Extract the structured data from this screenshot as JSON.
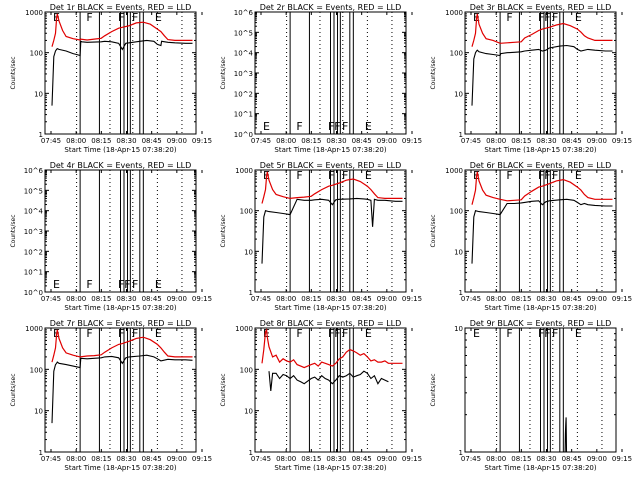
{
  "figure": {
    "xlabel": "Start Time (18-Apr-15 07:38:20)",
    "ylabel": "Counts/sec",
    "x_tick_labels": [
      "07:45",
      "08:00",
      "08:15",
      "08:30",
      "08:45",
      "09:00",
      "09:15"
    ],
    "colors": {
      "events": "#000000",
      "lld": "#e00000",
      "background": "#ffffff"
    }
  },
  "chart_data": [
    {
      "type": "line",
      "title": "Det 1r BLACK = Events, RED = LLD",
      "x_range": [
        -2,
        41
      ],
      "ylim": [
        1,
        1000
      ],
      "y_scale": "log",
      "y_tick_labels": [
        "1",
        "10",
        "100",
        "1000"
      ],
      "marker_letters": [
        "E",
        "F",
        "F",
        "F",
        "E"
      ],
      "series": [
        {
          "name": "Events",
          "x": [
            0,
            0.5,
            1,
            1.3,
            1.5,
            2,
            4,
            6,
            7,
            8,
            8.2,
            8.5,
            10,
            12,
            14,
            15,
            17,
            19,
            20,
            21,
            22,
            25,
            27,
            29,
            30,
            31,
            31.2,
            33,
            35,
            38,
            40
          ],
          "y": [
            5,
            80,
            110,
            120,
            125,
            120,
            110,
            95,
            90,
            85,
            190,
            185,
            180,
            182,
            185,
            190,
            185,
            170,
            120,
            170,
            175,
            190,
            200,
            190,
            160,
            150,
            190,
            180,
            175,
            170,
            170
          ]
        },
        {
          "name": "LLD",
          "x": [
            0,
            0.5,
            1,
            1.3,
            1.5,
            2,
            3,
            4,
            6,
            8,
            8.2,
            10,
            12,
            14,
            15,
            17,
            19,
            20,
            22,
            24,
            26,
            28,
            30,
            31,
            32,
            33,
            35,
            38,
            40
          ],
          "y": [
            140,
            200,
            300,
            700,
            900,
            600,
            350,
            250,
            220,
            205,
            215,
            205,
            215,
            225,
            260,
            330,
            400,
            420,
            460,
            540,
            560,
            500,
            380,
            330,
            260,
            210,
            200,
            200,
            200
          ]
        }
      ]
    },
    {
      "type": "line",
      "title": "Det 2r BLACK = Events, RED = LLD",
      "x_range": [
        -2,
        41
      ],
      "ylim": [
        1,
        1000000
      ],
      "y_scale": "log",
      "y_tick_labels": [
        "10^0",
        "10^1",
        "10^2",
        "10^3",
        "10^4",
        "10^5",
        "10^6"
      ],
      "marker_letters": [
        "E",
        "F",
        "FF",
        "F",
        "E"
      ],
      "series": []
    },
    {
      "type": "line",
      "title": "Det 3r BLACK = Events, RED = LLD",
      "x_range": [
        -2,
        41
      ],
      "ylim": [
        1,
        1000
      ],
      "y_scale": "log",
      "y_tick_labels": [
        "1",
        "10",
        "100",
        "1000"
      ],
      "marker_letters": [
        "E",
        "F",
        "FF",
        "F",
        "E"
      ],
      "series": [
        {
          "name": "Events",
          "x": [
            0,
            0.5,
            1,
            1.3,
            1.5,
            2,
            4,
            6,
            8,
            8.2,
            10,
            12,
            14,
            15,
            17,
            19,
            20,
            21,
            22,
            25,
            27,
            29,
            30,
            31,
            33,
            35,
            38,
            40
          ],
          "y": [
            5,
            70,
            100,
            110,
            115,
            105,
            95,
            90,
            85,
            95,
            100,
            102,
            105,
            110,
            115,
            120,
            110,
            115,
            130,
            145,
            150,
            140,
            120,
            110,
            120,
            115,
            110,
            110
          ]
        },
        {
          "name": "LLD",
          "x": [
            0,
            0.5,
            1,
            1.3,
            1.5,
            2,
            3,
            4,
            6,
            8,
            10,
            12,
            14,
            15,
            17,
            19,
            20,
            22,
            24,
            26,
            28,
            30,
            31,
            32,
            33,
            35,
            38,
            40
          ],
          "y": [
            140,
            200,
            300,
            700,
            900,
            500,
            300,
            220,
            200,
            170,
            175,
            180,
            185,
            230,
            280,
            350,
            380,
            420,
            480,
            520,
            460,
            380,
            320,
            260,
            230,
            200,
            200,
            200
          ]
        }
      ]
    },
    {
      "type": "line",
      "title": "Det 4r BLACK = Events, RED = LLD",
      "x_range": [
        -2,
        41
      ],
      "ylim": [
        1,
        1000000
      ],
      "y_scale": "log",
      "y_tick_labels": [
        "10^0",
        "10^1",
        "10^2",
        "10^3",
        "10^4",
        "10^5",
        "10^6"
      ],
      "marker_letters": [
        "E",
        "F",
        "FF",
        "F",
        "E"
      ],
      "series": []
    },
    {
      "type": "line",
      "title": "Det 5r BLACK = Events, RED = LLD",
      "x_range": [
        -2,
        41
      ],
      "ylim": [
        1,
        1000
      ],
      "y_scale": "log",
      "y_tick_labels": [
        "1",
        "10",
        "100",
        "1000"
      ],
      "marker_letters": [
        "E",
        "F",
        "F",
        "F",
        "E"
      ],
      "series": [
        {
          "name": "Events",
          "x": [
            0,
            0.5,
            1,
            2,
            4,
            6,
            8,
            10,
            12,
            14,
            15,
            17,
            19,
            20,
            21,
            22,
            25,
            27,
            29,
            30,
            31,
            31.5,
            32,
            33,
            35,
            38,
            40
          ],
          "y": [
            5,
            70,
            100,
            95,
            90,
            85,
            80,
            190,
            180,
            180,
            185,
            190,
            180,
            140,
            185,
            190,
            195,
            200,
            195,
            190,
            180,
            40,
            190,
            180,
            180,
            170,
            170
          ]
        },
        {
          "name": "LLD",
          "x": [
            0,
            0.5,
            1,
            1.3,
            1.5,
            2,
            3,
            4,
            6,
            8,
            10,
            12,
            14,
            15,
            17,
            19,
            20,
            22,
            24,
            26,
            28,
            30,
            31,
            32,
            33,
            35,
            38,
            40
          ],
          "y": [
            150,
            220,
            330,
            700,
            900,
            560,
            330,
            250,
            220,
            200,
            210,
            215,
            225,
            260,
            330,
            400,
            420,
            480,
            560,
            600,
            520,
            400,
            330,
            260,
            210,
            200,
            200,
            200
          ]
        }
      ]
    },
    {
      "type": "line",
      "title": "Det 6r BLACK = Events, RED = LLD",
      "x_range": [
        -2,
        41
      ],
      "ylim": [
        1,
        1000
      ],
      "y_scale": "log",
      "y_tick_labels": [
        "1",
        "10",
        "100",
        "1000"
      ],
      "marker_letters": [
        "E",
        "F",
        "FF",
        "F",
        "E"
      ],
      "series": [
        {
          "name": "Events",
          "x": [
            0,
            0.5,
            1,
            2,
            4,
            6,
            8,
            10,
            12,
            14,
            15,
            17,
            19,
            20,
            21,
            22,
            25,
            27,
            29,
            30,
            31,
            32,
            33,
            35,
            38,
            40
          ],
          "y": [
            5,
            70,
            100,
            95,
            90,
            85,
            80,
            150,
            150,
            155,
            160,
            170,
            175,
            140,
            165,
            175,
            185,
            190,
            180,
            160,
            140,
            150,
            140,
            135,
            130,
            130
          ]
        },
        {
          "name": "LLD",
          "x": [
            0,
            0.5,
            1,
            1.3,
            1.5,
            2,
            3,
            4,
            6,
            8,
            10,
            12,
            14,
            15,
            17,
            19,
            20,
            22,
            24,
            26,
            28,
            30,
            31,
            32,
            33,
            35,
            38,
            40
          ],
          "y": [
            140,
            210,
            320,
            700,
            900,
            540,
            320,
            240,
            210,
            190,
            175,
            180,
            185,
            230,
            300,
            380,
            400,
            460,
            540,
            580,
            500,
            380,
            320,
            250,
            210,
            190,
            190,
            190
          ]
        }
      ]
    },
    {
      "type": "line",
      "title": "Det 7r BLACK = Events, RED = LLD",
      "x_range": [
        -2,
        41
      ],
      "ylim": [
        1,
        1000
      ],
      "y_scale": "log",
      "y_tick_labels": [
        "1",
        "10",
        "100",
        "1000"
      ],
      "marker_letters": [
        "E",
        "F",
        "F",
        "F",
        "E"
      ],
      "series": [
        {
          "name": "Events",
          "x": [
            0,
            0.5,
            1,
            1.3,
            1.5,
            2,
            4,
            6,
            8,
            8.2,
            10,
            12,
            14,
            15,
            17,
            19,
            20,
            21,
            22,
            25,
            27,
            29,
            30,
            31,
            33,
            35,
            38,
            40
          ],
          "y": [
            5,
            90,
            130,
            140,
            150,
            140,
            130,
            120,
            110,
            185,
            180,
            185,
            190,
            200,
            205,
            190,
            140,
            190,
            200,
            210,
            220,
            200,
            180,
            160,
            175,
            170,
            170,
            165
          ]
        },
        {
          "name": "LLD",
          "x": [
            0,
            0.5,
            1,
            1.3,
            1.5,
            2,
            3,
            4,
            6,
            8,
            10,
            12,
            14,
            15,
            17,
            19,
            20,
            22,
            24,
            26,
            28,
            30,
            31,
            32,
            33,
            35,
            38,
            40
          ],
          "y": [
            150,
            220,
            330,
            700,
            900,
            560,
            330,
            250,
            220,
            200,
            210,
            215,
            225,
            260,
            330,
            400,
            420,
            480,
            560,
            600,
            520,
            400,
            330,
            260,
            210,
            200,
            200,
            200
          ]
        }
      ]
    },
    {
      "type": "line",
      "title": "Det 8r BLACK = Events, RED = LLD",
      "x_range": [
        -2,
        41
      ],
      "ylim": [
        1,
        1000
      ],
      "y_scale": "log",
      "y_tick_labels": [
        "1",
        "10",
        "100",
        "1000"
      ],
      "marker_letters": [
        "E",
        "F",
        "FF",
        "F",
        "E"
      ],
      "series": [
        {
          "name": "Events",
          "x": [
            2,
            2.5,
            3,
            4,
            5,
            6,
            7,
            8,
            9,
            10,
            11,
            12,
            14,
            15,
            16,
            17,
            18,
            19,
            20,
            21,
            22,
            23,
            24,
            25,
            26,
            27,
            28,
            29,
            30,
            31,
            32,
            33,
            34,
            35,
            36
          ],
          "y": [
            90,
            30,
            80,
            80,
            60,
            75,
            70,
            60,
            70,
            55,
            50,
            45,
            60,
            65,
            55,
            70,
            60,
            55,
            45,
            55,
            70,
            65,
            70,
            80,
            65,
            70,
            75,
            90,
            80,
            60,
            70,
            45,
            60,
            55,
            50
          ]
        },
        {
          "name": "LLD",
          "x": [
            0,
            0.5,
            1,
            1.3,
            1.5,
            2,
            3,
            4,
            5,
            6,
            7,
            8,
            9,
            10,
            11,
            12,
            14,
            15,
            16,
            17,
            18,
            19,
            20,
            21,
            22,
            23,
            24,
            25,
            26,
            27,
            28,
            29,
            30,
            31,
            32,
            33,
            34,
            35,
            36,
            38,
            40
          ],
          "y": [
            140,
            300,
            800,
            900,
            600,
            350,
            200,
            220,
            150,
            180,
            160,
            150,
            170,
            130,
            120,
            110,
            130,
            140,
            120,
            150,
            140,
            130,
            120,
            140,
            180,
            200,
            260,
            300,
            280,
            250,
            220,
            240,
            200,
            160,
            170,
            150,
            150,
            160,
            140,
            140,
            140
          ]
        }
      ]
    },
    {
      "type": "line",
      "title": "Det 9r BLACK = Events, RED = LLD",
      "x_range": [
        -2,
        41
      ],
      "ylim": [
        1,
        10
      ],
      "y_scale": "log",
      "y_tick_labels": [
        "1",
        "10"
      ],
      "marker_letters": [
        "E",
        "F",
        "FF",
        "F",
        "E"
      ],
      "series": [
        {
          "name": "Events",
          "x": [
            26.5,
            26.6,
            26.7,
            26.8,
            26.9
          ],
          "y": [
            1,
            1.4,
            1.7,
            1.9,
            1
          ]
        }
      ]
    }
  ]
}
